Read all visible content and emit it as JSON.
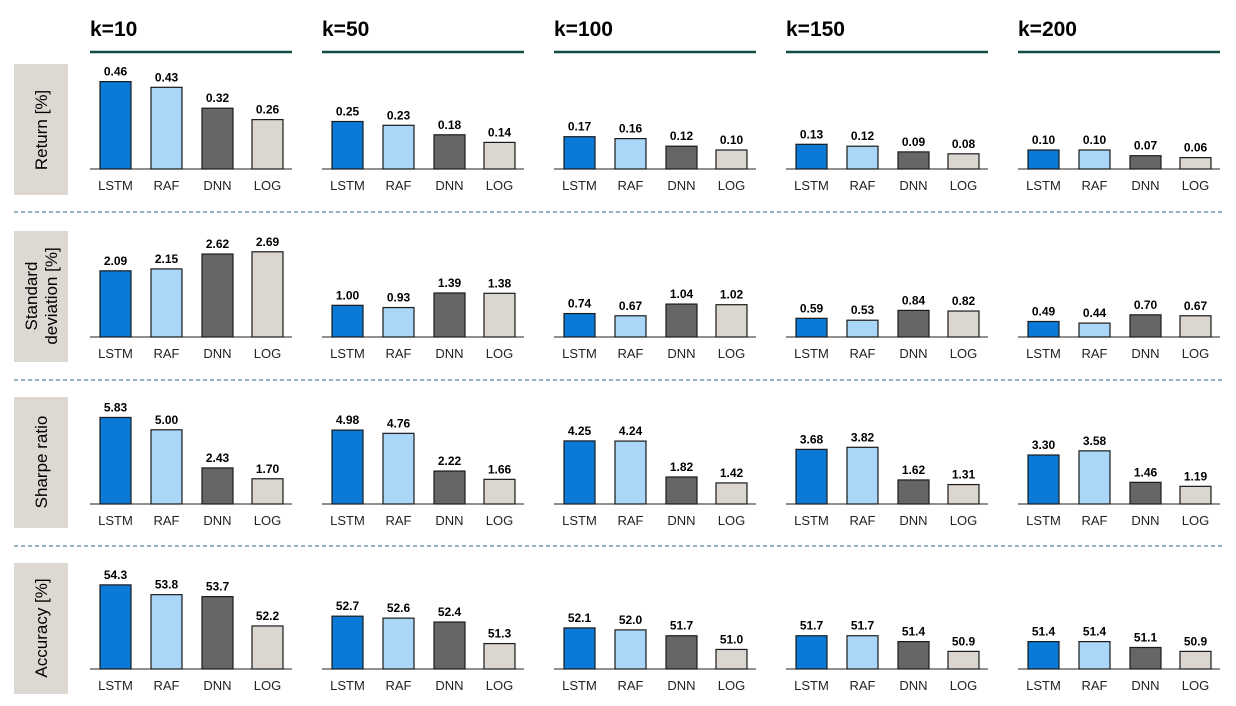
{
  "chart_data": {
    "type": "bar",
    "title": "",
    "columns": [
      "k=10",
      "k=50",
      "k=100",
      "k=150",
      "k=200"
    ],
    "rows": [
      "Return [%]",
      "Standard deviation [%]",
      "Sharpe ratio",
      "Accuracy [%]"
    ],
    "categories": [
      "LSTM",
      "RAF",
      "DNN",
      "LOG"
    ],
    "colors": {
      "LSTM": "#0a7ad6",
      "RAF": "#aad6f8",
      "DNN": "#666666",
      "LOG": "#dbd6cf"
    },
    "accent": {
      "header_line": "#0f4c42",
      "divider": "#2e6a8a",
      "row_label_bg": "#ded8d2"
    },
    "panels": [
      [
        {
          "labels": [
            "0.46",
            "0.43",
            "0.32",
            "0.26"
          ],
          "values": [
            0.46,
            0.43,
            0.32,
            0.26
          ]
        },
        {
          "labels": [
            "0.25",
            "0.23",
            "0.18",
            "0.14"
          ],
          "values": [
            0.25,
            0.23,
            0.18,
            0.14
          ]
        },
        {
          "labels": [
            "0.17",
            "0.16",
            "0.12",
            "0.10"
          ],
          "values": [
            0.17,
            0.16,
            0.12,
            0.1
          ]
        },
        {
          "labels": [
            "0.13",
            "0.12",
            "0.09",
            "0.08"
          ],
          "values": [
            0.13,
            0.12,
            0.09,
            0.08
          ]
        },
        {
          "labels": [
            "0.10",
            "0.10",
            "0.07",
            "0.06"
          ],
          "values": [
            0.1,
            0.1,
            0.07,
            0.06
          ]
        }
      ],
      [
        {
          "labels": [
            "2.09",
            "2.15",
            "2.62",
            "2.69"
          ],
          "values": [
            2.09,
            2.15,
            2.62,
            2.69
          ]
        },
        {
          "labels": [
            "1.00",
            "0.93",
            "1.39",
            "1.38"
          ],
          "values": [
            1.0,
            0.93,
            1.39,
            1.38
          ]
        },
        {
          "labels": [
            "0.74",
            "0.67",
            "1.04",
            "1.02"
          ],
          "values": [
            0.74,
            0.67,
            1.04,
            1.02
          ]
        },
        {
          "labels": [
            "0.59",
            "0.53",
            "0.84",
            "0.82"
          ],
          "values": [
            0.59,
            0.53,
            0.84,
            0.82
          ]
        },
        {
          "labels": [
            "0.49",
            "0.44",
            "0.70",
            "0.67"
          ],
          "values": [
            0.49,
            0.44,
            0.7,
            0.67
          ]
        }
      ],
      [
        {
          "labels": [
            "5.83",
            "5.00",
            "2.43",
            "1.70"
          ],
          "values": [
            5.83,
            5.0,
            2.43,
            1.7
          ]
        },
        {
          "labels": [
            "4.98",
            "4.76",
            "2.22",
            "1.66"
          ],
          "values": [
            4.98,
            4.76,
            2.22,
            1.66
          ]
        },
        {
          "labels": [
            "4.25",
            "4.24",
            "1.82",
            "1.42"
          ],
          "values": [
            4.25,
            4.24,
            1.82,
            1.42
          ]
        },
        {
          "labels": [
            "3.68",
            "3.82",
            "1.62",
            "1.31"
          ],
          "values": [
            3.68,
            3.82,
            1.62,
            1.31
          ]
        },
        {
          "labels": [
            "3.30",
            "3.58",
            "1.46",
            "1.19"
          ],
          "values": [
            3.3,
            3.58,
            1.46,
            1.19
          ]
        }
      ],
      [
        {
          "labels": [
            "54.3",
            "53.8",
            "53.7",
            "52.2"
          ],
          "values": [
            54.3,
            53.8,
            53.7,
            52.2
          ]
        },
        {
          "labels": [
            "52.7",
            "52.6",
            "52.4",
            "51.3"
          ],
          "values": [
            52.7,
            52.6,
            52.4,
            51.3
          ]
        },
        {
          "labels": [
            "52.1",
            "52.0",
            "51.7",
            "51.0"
          ],
          "values": [
            52.1,
            52.0,
            51.7,
            51.0
          ]
        },
        {
          "labels": [
            "51.7",
            "51.7",
            "51.4",
            "50.9"
          ],
          "values": [
            51.7,
            51.7,
            51.4,
            50.9
          ]
        },
        {
          "labels": [
            "51.4",
            "51.4",
            "51.1",
            "50.9"
          ],
          "values": [
            51.4,
            51.4,
            51.1,
            50.9
          ]
        }
      ]
    ],
    "row_ylim": [
      [
        0,
        0.5
      ],
      [
        0,
        3.0
      ],
      [
        0,
        6.4
      ],
      [
        50.0,
        54.6
      ]
    ]
  }
}
